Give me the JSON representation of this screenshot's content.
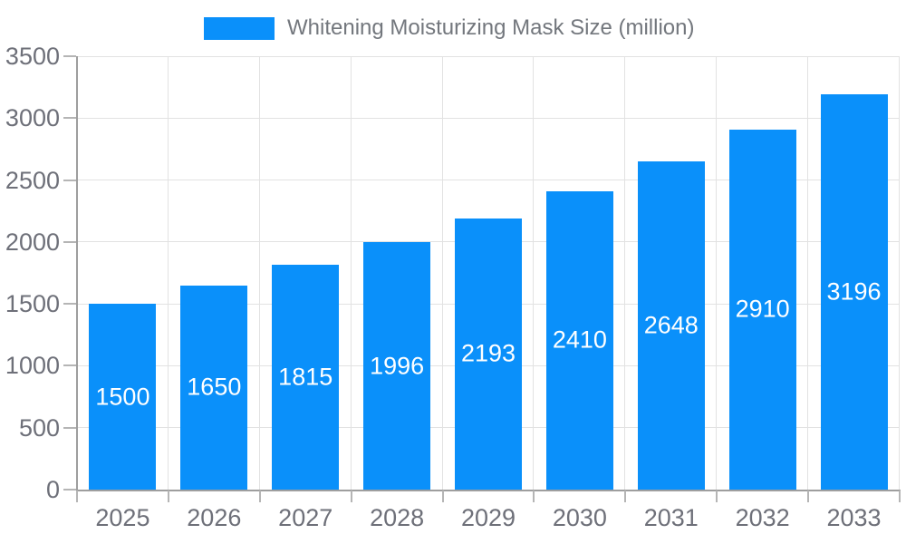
{
  "legend": {
    "series_label": "Whitening Moisturizing Mask Size (million)"
  },
  "colors": {
    "bar": "#0A90FA",
    "axis_line": "#9E9E9E",
    "tick": "#B5B5B5",
    "grid": "#E2E2E2",
    "axis_text": "#6E7079",
    "legend_text": "#73777D",
    "bar_label_text": "#FFFFFF",
    "background": "#FFFFFF"
  },
  "chart_data": {
    "type": "bar",
    "title": "Whitening Moisturizing Mask Size (million)",
    "categories": [
      "2025",
      "2026",
      "2027",
      "2028",
      "2029",
      "2030",
      "2031",
      "2032",
      "2033"
    ],
    "series": [
      {
        "name": "Whitening Moisturizing Mask Size (million)",
        "values": [
          1500,
          1650,
          1815,
          1996,
          2193,
          2410,
          2648,
          2910,
          3196
        ]
      }
    ],
    "xlabel": "",
    "ylabel": "",
    "ylim": [
      0,
      3500
    ],
    "yticks": [
      0,
      500,
      1000,
      1500,
      2000,
      2500,
      3000,
      3500
    ],
    "grid": true,
    "legend_position": "top-center",
    "value_labels": "inside-center"
  }
}
